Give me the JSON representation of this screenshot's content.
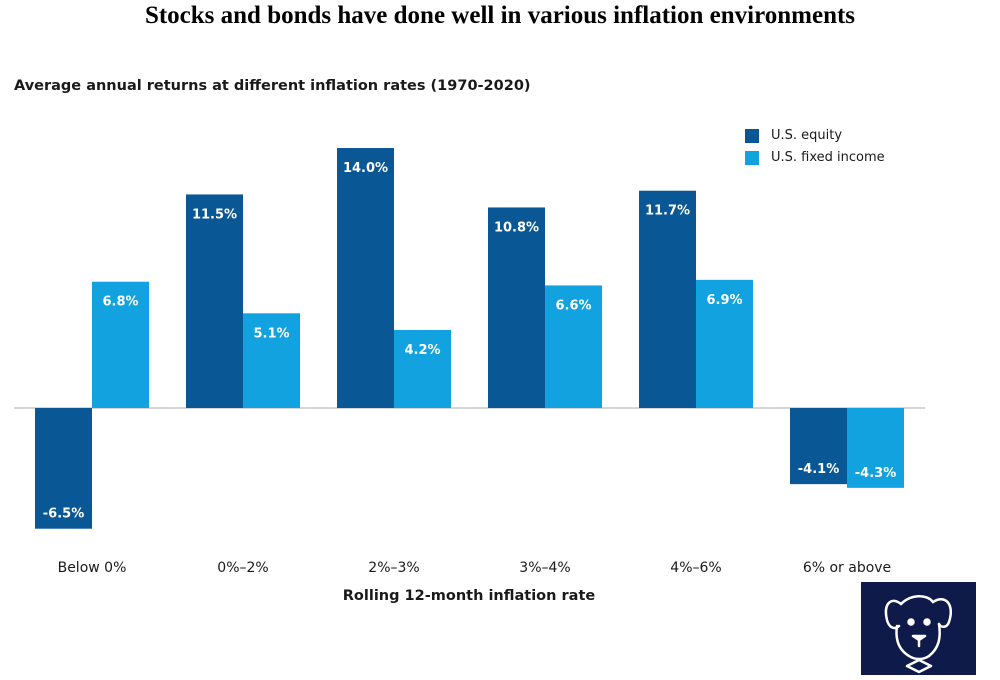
{
  "headline": "Stocks and bonds have done well in various inflation environments",
  "chart_data": {
    "type": "bar",
    "title": "Average annual returns at different inflation rates (1970-2020)",
    "xlabel": "Rolling 12-month inflation rate",
    "ylabel": "",
    "ylim": [
      -8,
      16
    ],
    "categories": [
      "Below 0%",
      "0%–2%",
      "2%–3%",
      "3%–4%",
      "4%–6%",
      "6% or above"
    ],
    "series": [
      {
        "name": "U.S. equity",
        "color": "#0a5796",
        "values": [
          -6.5,
          11.5,
          14.0,
          10.8,
          11.7,
          -4.1
        ],
        "labels": [
          "-6.5%",
          "11.5%",
          "14.0%",
          "10.8%",
          "11.7%",
          "-4.1%"
        ]
      },
      {
        "name": "U.S. fixed income",
        "color": "#12a2e0",
        "values": [
          6.8,
          5.1,
          4.2,
          6.6,
          6.9,
          -4.3
        ],
        "labels": [
          "6.8%",
          "5.1%",
          "4.2%",
          "6.6%",
          "6.9%",
          "-4.3%"
        ]
      }
    ],
    "grid": false,
    "legend": "top-right"
  },
  "logo": {
    "name": "dog-mascot-icon",
    "color": "#0e1a4a"
  }
}
